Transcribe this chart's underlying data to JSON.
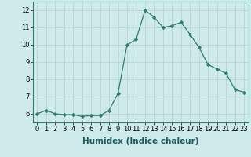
{
  "x": [
    0,
    1,
    2,
    3,
    4,
    5,
    6,
    7,
    8,
    9,
    10,
    11,
    12,
    13,
    14,
    15,
    16,
    17,
    18,
    19,
    20,
    21,
    22,
    23
  ],
  "y": [
    6.0,
    6.2,
    6.0,
    5.95,
    5.95,
    5.85,
    5.9,
    5.9,
    6.2,
    7.2,
    10.0,
    10.3,
    12.0,
    11.6,
    11.0,
    11.1,
    11.3,
    10.6,
    9.85,
    8.85,
    8.6,
    8.35,
    7.4,
    7.25
  ],
  "line_color": "#2e7d6e",
  "marker": "D",
  "marker_size": 2.2,
  "bg_color": "#ceeaea",
  "grid_color": "#b8d4d4",
  "xlabel": "Humidex (Indice chaleur)",
  "xlim": [
    -0.5,
    23.5
  ],
  "ylim": [
    5.5,
    12.5
  ],
  "yticks": [
    6,
    7,
    8,
    9,
    10,
    11,
    12
  ],
  "xticks": [
    0,
    1,
    2,
    3,
    4,
    5,
    6,
    7,
    8,
    9,
    10,
    11,
    12,
    13,
    14,
    15,
    16,
    17,
    18,
    19,
    20,
    21,
    22,
    23
  ],
  "label_fontsize": 7.5,
  "tick_fontsize": 6.0
}
